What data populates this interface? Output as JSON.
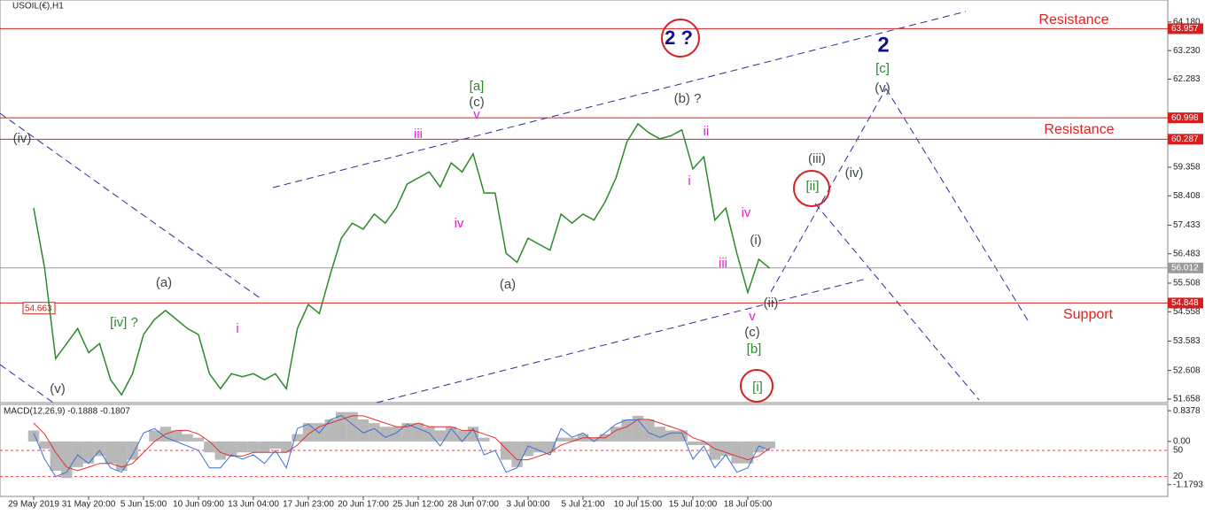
{
  "chart_data": {
    "type": "line",
    "title": "USOIL(€),H1",
    "categories": [
      "29 May 2019",
      null,
      null,
      null,
      null,
      "31 May 20:00",
      null,
      null,
      null,
      null,
      "5 Jun 15:00",
      null,
      null,
      null,
      null,
      "10 Jun 09:00",
      null,
      null,
      null,
      null,
      "13 Jun 04:00",
      null,
      null,
      null,
      null,
      "17 Jun 23:00",
      null,
      null,
      null,
      null,
      "20 Jun 17:00",
      null,
      null,
      null,
      null,
      "25 Jun 12:00",
      null,
      null,
      null,
      null,
      "28 Jun 07:00",
      null,
      null,
      null,
      null,
      "3 Jul 00:00",
      null,
      null,
      null,
      null,
      "5 Jul 21:00",
      null,
      null,
      null,
      null,
      "10 Jul 15:00",
      null,
      null,
      null,
      null,
      "15 Jul 10:00",
      null,
      null,
      null,
      null,
      "18 Jul 05:00",
      null,
      null
    ],
    "series": [
      {
        "color": "#2a8a2a",
        "values": [
          58.0,
          56.0,
          53.0,
          53.5,
          54.0,
          53.2,
          53.5,
          52.3,
          51.8,
          52.5,
          53.8,
          54.3,
          54.6,
          54.3,
          54.0,
          53.8,
          52.5,
          52.0,
          52.5,
          52.4,
          52.5,
          52.3,
          52.5,
          52.0,
          54.0,
          54.8,
          54.5,
          55.8,
          57.0,
          57.5,
          57.3,
          57.8,
          57.5,
          58.0,
          58.8,
          59.0,
          59.2,
          58.7,
          59.5,
          59.2,
          59.8,
          58.5,
          58.5,
          56.5,
          56.2,
          57.0,
          56.8,
          56.6,
          57.8,
          57.5,
          57.8,
          57.6,
          58.2,
          59.0,
          60.2,
          60.8,
          60.5,
          60.3,
          60.4,
          60.6,
          59.3,
          59.7,
          57.6,
          58.0,
          56.5,
          55.2,
          56.3,
          56.0
        ]
      }
    ],
    "ylim": [
      51.54,
      64.91
    ],
    "yticks": [
      {
        "value": 64.18,
        "label": "64.180"
      },
      {
        "value": 63.23,
        "label": "63.230"
      },
      62.283,
      59.358,
      58.408,
      57.433,
      56.483,
      55.508,
      54.558,
      53.583,
      52.608,
      51.658
    ],
    "levels": [
      {
        "value": 63.957,
        "color": "#d42020"
      },
      {
        "value": 60.998,
        "color": "#d42020"
      },
      {
        "value": 60.287,
        "color": "#d42020"
      },
      {
        "value": 54.848,
        "color": "#d42020"
      },
      {
        "value": 56.012,
        "color": "#9a9a9a"
      }
    ],
    "marker_label": 54.663,
    "annotations": [
      {
        "text": "(iv)",
        "color": "#3c4a4a"
      },
      {
        "text": "(a)",
        "color": "#3c4a4a"
      },
      {
        "text": "[iv] ?",
        "color": "#2f8a2f"
      },
      {
        "text": "(v)",
        "color": "#3c4a4a"
      },
      {
        "text": "i",
        "color": "#e020d0"
      },
      {
        "text": "[a]",
        "color": "#2f8a2f"
      },
      {
        "text": "(c)",
        "color": "#3c4a4a"
      },
      {
        "text": "v",
        "color": "#e020d0"
      },
      {
        "text": "iii",
        "color": "#e020d0"
      },
      {
        "text": "iv",
        "color": "#e020d0"
      },
      {
        "text": "(a)",
        "color": "#3c4a4a"
      },
      {
        "text": "2 ?",
        "color": "#10108a"
      },
      {
        "text": "2",
        "color": "#10108a"
      },
      {
        "text": "[c]",
        "color": "#2f8a2f"
      },
      {
        "text": "(v)",
        "color": "#3c4a4a"
      },
      {
        "text": "(b) ?",
        "color": "#3c4a4a"
      },
      {
        "text": "ii",
        "color": "#e020d0"
      },
      {
        "text": "i",
        "color": "#e020d0"
      },
      {
        "text": "iv",
        "color": "#e020d0"
      },
      {
        "text": "iii",
        "color": "#e020d0"
      },
      {
        "text": "(i)",
        "color": "#3c4a4a"
      },
      {
        "text": "(ii)",
        "color": "#3c4a4a"
      },
      {
        "text": "v",
        "color": "#e020d0"
      },
      {
        "text": "(c)",
        "color": "#3c4a4a"
      },
      {
        "text": "[b]",
        "color": "#2f8a2f"
      },
      {
        "text": "[i]",
        "color": "#2f8a2f"
      },
      {
        "text": "(iii)",
        "color": "#3c4a4a"
      },
      {
        "text": "[ii]",
        "color": "#2f8a2f"
      },
      {
        "text": "(iv)",
        "color": "#3c4a4a"
      },
      {
        "text": "Resistance",
        "color": "#e02020"
      },
      {
        "text": "Resistance",
        "color": "#e02020"
      },
      {
        "text": "Support",
        "color": "#e02020"
      }
    ],
    "macd": {
      "title": "MACD(12,26,9) -0.1888 -0.1807",
      "ylim": [
        -1.5,
        1.01
      ],
      "yticks": [
        0.8378,
        {
          "value": 0,
          "label": "0.00"
        },
        -1.1793
      ],
      "histogram": {
        "color": "#b8b8b8",
        "values": [
          0.3,
          -0.2,
          -0.8,
          -1.0,
          -0.7,
          -0.6,
          -0.4,
          -0.6,
          -0.8,
          -0.5,
          0.0,
          0.3,
          0.4,
          0.3,
          0.2,
          0.1,
          -0.3,
          -0.5,
          -0.4,
          -0.3,
          -0.3,
          -0.3,
          -0.2,
          -0.3,
          0.2,
          0.5,
          0.5,
          0.6,
          0.8,
          0.8,
          0.6,
          0.5,
          0.4,
          0.4,
          0.5,
          0.5,
          0.4,
          0.3,
          0.4,
          0.3,
          0.4,
          0.1,
          0.0,
          -0.5,
          -0.7,
          -0.4,
          -0.3,
          -0.3,
          0.1,
          0.1,
          0.2,
          0.1,
          0.2,
          0.4,
          0.6,
          0.7,
          0.6,
          0.4,
          0.3,
          0.3,
          -0.1,
          -0.1,
          -0.5,
          -0.4,
          -0.6,
          -0.6,
          -0.3,
          -0.19
        ]
      },
      "signal": {
        "color": "#e03030",
        "values": [
          0.5,
          0.2,
          -0.3,
          -0.7,
          -0.8,
          -0.7,
          -0.6,
          -0.6,
          -0.7,
          -0.6,
          -0.3,
          0.0,
          0.2,
          0.3,
          0.3,
          0.2,
          0.0,
          -0.3,
          -0.4,
          -0.4,
          -0.3,
          -0.3,
          -0.3,
          -0.3,
          -0.1,
          0.2,
          0.4,
          0.5,
          0.6,
          0.7,
          0.7,
          0.6,
          0.5,
          0.4,
          0.4,
          0.5,
          0.4,
          0.4,
          0.4,
          0.3,
          0.3,
          0.2,
          0.1,
          -0.2,
          -0.5,
          -0.5,
          -0.4,
          -0.3,
          -0.1,
          0.0,
          0.1,
          0.1,
          0.1,
          0.3,
          0.4,
          0.6,
          0.6,
          0.5,
          0.4,
          0.3,
          0.1,
          0.0,
          -0.2,
          -0.3,
          -0.4,
          -0.5,
          -0.4,
          -0.18
        ]
      }
    },
    "oscillator": {
      "ylim": [
        -2.7,
        102.7
      ],
      "levels": [
        50,
        20
      ],
      "series": {
        "color": "#3a6fd8",
        "values": [
          70,
          40,
          20,
          25,
          45,
          35,
          50,
          30,
          25,
          45,
          70,
          75,
          65,
          60,
          55,
          50,
          30,
          30,
          45,
          40,
          45,
          35,
          50,
          30,
          75,
          80,
          70,
          85,
          90,
          80,
          70,
          75,
          65,
          70,
          80,
          75,
          70,
          55,
          75,
          60,
          75,
          45,
          50,
          25,
          30,
          55,
          50,
          45,
          75,
          65,
          70,
          60,
          70,
          80,
          85,
          85,
          70,
          65,
          70,
          70,
          40,
          55,
          30,
          45,
          25,
          30,
          55,
          50
        ]
      }
    }
  }
}
